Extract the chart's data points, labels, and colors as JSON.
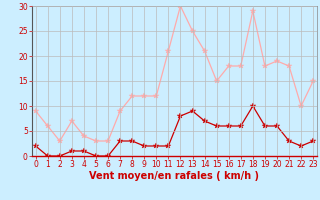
{
  "x": [
    0,
    1,
    2,
    3,
    4,
    5,
    6,
    7,
    8,
    9,
    10,
    11,
    12,
    13,
    14,
    15,
    16,
    17,
    18,
    19,
    20,
    21,
    22,
    23
  ],
  "wind_avg": [
    2,
    0,
    0,
    1,
    1,
    0,
    0,
    3,
    3,
    2,
    2,
    2,
    8,
    9,
    7,
    6,
    6,
    6,
    10,
    6,
    6,
    3,
    2,
    3
  ],
  "wind_gust": [
    9,
    6,
    3,
    7,
    4,
    3,
    3,
    9,
    12,
    12,
    12,
    21,
    30,
    25,
    21,
    15,
    18,
    18,
    29,
    18,
    19,
    18,
    10,
    15
  ],
  "avg_color": "#cc0000",
  "gust_color": "#ffaaaa",
  "bg_color": "#cceeff",
  "grid_color": "#bbbbbb",
  "xlabel": "Vent moyen/en rafales ( km/h )",
  "ylim": [
    0,
    30
  ],
  "yticks": [
    0,
    5,
    10,
    15,
    20,
    25,
    30
  ],
  "xticks": [
    0,
    1,
    2,
    3,
    4,
    5,
    6,
    7,
    8,
    9,
    10,
    11,
    12,
    13,
    14,
    15,
    16,
    17,
    18,
    19,
    20,
    21,
    22,
    23
  ],
  "tick_fontsize": 5.5,
  "xlabel_fontsize": 7
}
